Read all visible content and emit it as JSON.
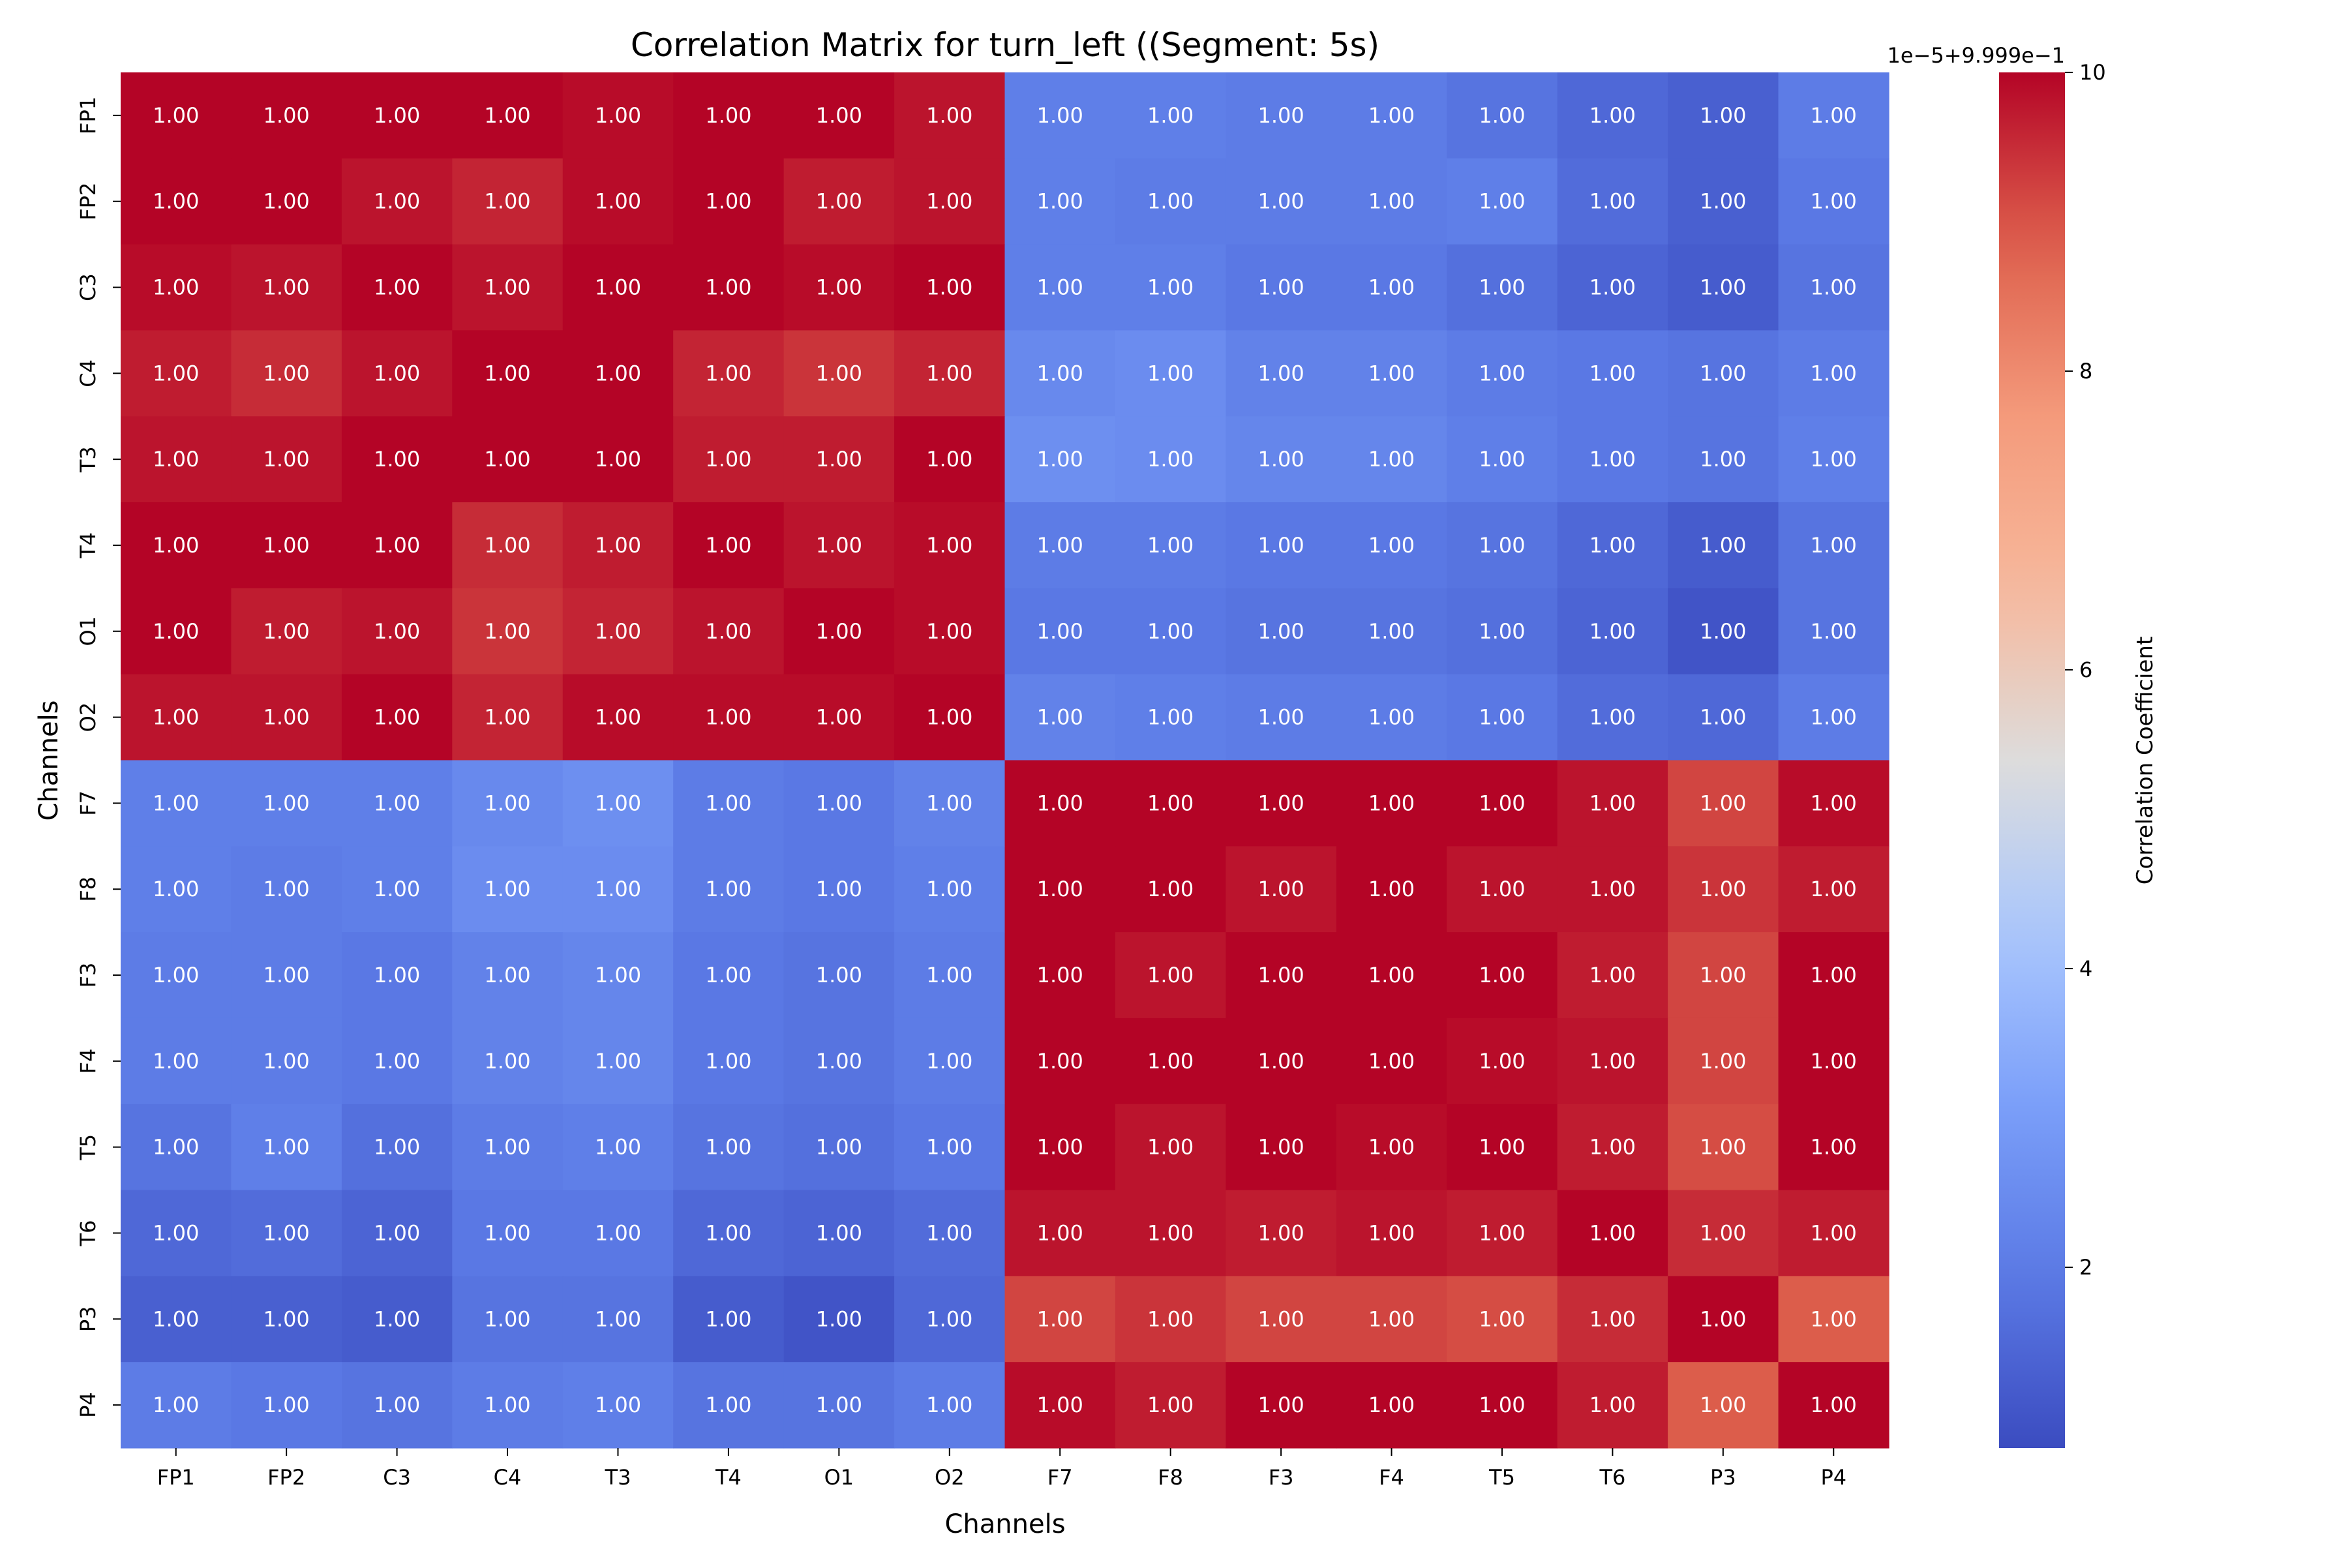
{
  "chart_data": {
    "type": "heatmap",
    "title": "Correlation Matrix for turn_left ((Segment: 5s)",
    "xlabel": "Channels",
    "ylabel": "Channels",
    "x_categories": [
      "FP1",
      "FP2",
      "C3",
      "C4",
      "T3",
      "T4",
      "O1",
      "O2",
      "F7",
      "F8",
      "F3",
      "F4",
      "T5",
      "T6",
      "P3",
      "P4"
    ],
    "y_categories": [
      "FP1",
      "FP2",
      "C3",
      "C4",
      "T3",
      "T4",
      "O1",
      "O2",
      "F7",
      "F8",
      "F3",
      "F4",
      "T5",
      "T6",
      "P3",
      "P4"
    ],
    "cell_annotation": "1.00",
    "colormap": "coolwarm",
    "colorbar": {
      "label": "Correlation Coefficient",
      "offset_text": "1e−5+9.999e−1",
      "range": [
        0.79,
        10
      ],
      "ticks": [
        2,
        4,
        6,
        8,
        10
      ]
    },
    "values_unit_note": "values shown in colorbar units (value = 0.9999 + v×1e-5)",
    "values": [
      [
        10,
        10,
        10,
        10,
        9.9,
        10,
        10,
        9.8,
        2.1,
        2.1,
        2.0,
        2.0,
        1.8,
        1.5,
        1.3,
        2.0
      ],
      [
        10,
        10,
        9.8,
        9.6,
        9.9,
        10,
        9.7,
        9.8,
        2.1,
        2.0,
        2.0,
        2.0,
        2.1,
        1.6,
        1.3,
        1.9
      ],
      [
        9.9,
        9.8,
        10,
        9.8,
        10,
        10,
        9.9,
        10,
        2.1,
        2.1,
        1.9,
        1.9,
        1.7,
        1.4,
        1.2,
        1.8
      ],
      [
        9.7,
        9.5,
        9.8,
        10,
        10,
        9.6,
        9.4,
        9.6,
        2.4,
        2.5,
        2.2,
        2.2,
        2.0,
        1.9,
        1.8,
        2.0
      ],
      [
        9.8,
        9.8,
        10,
        10,
        10,
        9.7,
        9.7,
        10,
        2.6,
        2.5,
        2.3,
        2.3,
        2.1,
        1.9,
        1.8,
        2.1
      ],
      [
        10,
        10,
        10,
        9.5,
        9.7,
        10,
        9.8,
        9.9,
        2.0,
        2.0,
        1.9,
        1.9,
        1.8,
        1.5,
        1.2,
        1.8
      ],
      [
        10,
        9.7,
        9.8,
        9.4,
        9.6,
        9.8,
        10,
        9.9,
        1.9,
        1.9,
        1.8,
        1.8,
        1.7,
        1.4,
        1.0,
        1.8
      ],
      [
        9.8,
        9.8,
        10,
        9.6,
        9.9,
        9.9,
        9.9,
        10,
        2.2,
        2.1,
        2.0,
        2.0,
        1.9,
        1.6,
        1.5,
        2.0
      ],
      [
        2.1,
        2.1,
        2.1,
        2.4,
        2.6,
        2.0,
        1.9,
        2.2,
        10,
        10,
        10,
        10,
        10,
        9.8,
        9.2,
        9.9
      ],
      [
        2.1,
        2.0,
        2.1,
        2.5,
        2.5,
        2.0,
        1.9,
        2.1,
        10,
        10,
        9.8,
        10,
        9.8,
        9.8,
        9.4,
        9.7
      ],
      [
        2.0,
        2.0,
        1.9,
        2.2,
        2.3,
        1.9,
        1.8,
        2.0,
        10,
        9.8,
        10,
        10,
        10,
        9.7,
        9.2,
        10
      ],
      [
        2.0,
        2.0,
        1.9,
        2.2,
        2.3,
        1.9,
        1.8,
        2.0,
        10,
        10,
        10,
        10,
        9.9,
        9.8,
        9.2,
        10
      ],
      [
        1.8,
        2.1,
        1.7,
        2.0,
        2.1,
        1.8,
        1.7,
        1.9,
        10,
        9.8,
        10,
        9.9,
        10,
        9.7,
        9.1,
        10
      ],
      [
        1.5,
        1.6,
        1.4,
        1.9,
        1.9,
        1.5,
        1.4,
        1.6,
        9.8,
        9.8,
        9.7,
        9.8,
        9.7,
        10,
        9.5,
        9.7
      ],
      [
        1.3,
        1.3,
        1.2,
        1.8,
        1.8,
        1.2,
        1.0,
        1.5,
        9.2,
        9.4,
        9.2,
        9.2,
        9.1,
        9.5,
        10,
        8.9
      ],
      [
        2.0,
        1.9,
        1.8,
        2.0,
        2.1,
        1.8,
        1.8,
        2.0,
        9.9,
        9.7,
        10,
        10,
        10,
        9.7,
        8.9,
        10
      ]
    ],
    "grid": false,
    "legend": "colorbar-right"
  }
}
